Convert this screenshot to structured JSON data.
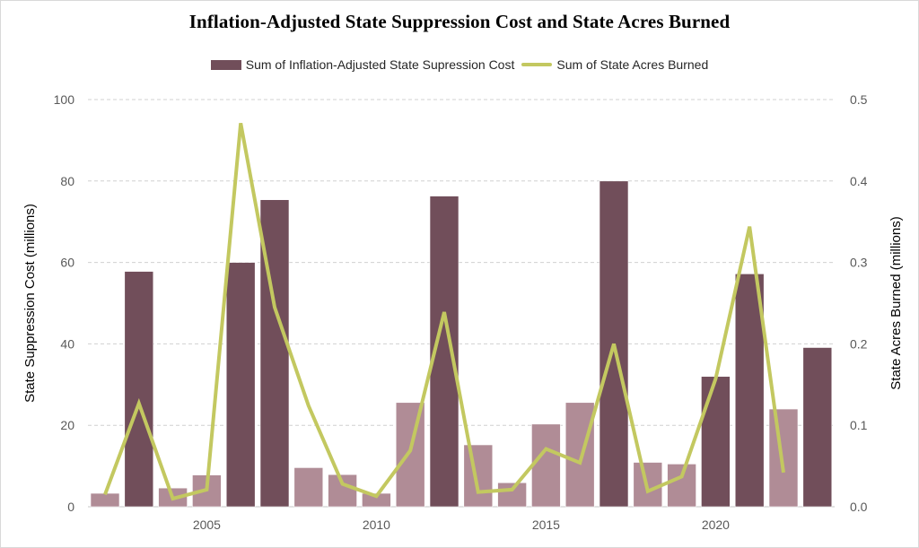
{
  "chart_data": {
    "type": "bar",
    "combo": "bar+line (secondary axis)",
    "title": "Inflation-Adjusted State Suppression Cost and State Acres Burned",
    "legend_position": "top",
    "grid": true,
    "xlabel": "",
    "ylabel": "State Suppression Cost (millions)",
    "y2label": "State Acres Burned (millions)",
    "ylim": [
      0,
      100
    ],
    "y2lim": [
      0,
      0.5
    ],
    "yticks": [
      "0",
      "20",
      "40",
      "60",
      "80",
      "100"
    ],
    "y2ticks": [
      "0.0",
      "0.1",
      "0.2",
      "0.3",
      "0.4",
      "0.5"
    ],
    "xtick_labels": [
      "2005",
      "2010",
      "2015",
      "2020"
    ],
    "categories": [
      2002,
      2003,
      2004,
      2005,
      2006,
      2007,
      2008,
      2009,
      2010,
      2011,
      2012,
      2013,
      2014,
      2015,
      2016,
      2017,
      2018,
      2019,
      2020,
      2021,
      2022,
      2023
    ],
    "series": [
      {
        "name": "Sum of Inflation-Adjusted State Supression Cost",
        "type": "bar",
        "axis": "left",
        "color": "#714E5A",
        "highlight_color": "#714E5A",
        "muted_color": "#B08C96",
        "values": [
          3.3,
          57.8,
          4.6,
          7.8,
          60.0,
          75.4,
          9.6,
          7.9,
          3.3,
          25.6,
          76.3,
          15.2,
          5.9,
          20.3,
          25.6,
          80.0,
          10.9,
          10.5,
          32.0,
          57.2,
          24.0,
          39.1
        ],
        "highlighted": [
          false,
          true,
          false,
          false,
          true,
          true,
          false,
          false,
          false,
          false,
          true,
          false,
          false,
          false,
          false,
          true,
          false,
          false,
          true,
          true,
          false,
          true
        ]
      },
      {
        "name": "Sum of State Acres Burned",
        "type": "line",
        "axis": "right",
        "color": "#C3C860",
        "values": [
          0.015,
          0.127,
          0.01,
          0.021,
          0.471,
          0.245,
          0.124,
          0.028,
          0.013,
          0.069,
          0.239,
          0.018,
          0.021,
          0.071,
          0.054,
          0.2,
          0.019,
          0.037,
          0.157,
          0.344,
          0.042,
          null
        ]
      }
    ]
  },
  "legend": {
    "bar_label": "Sum of Inflation-Adjusted State Supression Cost",
    "line_label": "Sum of State Acres Burned"
  }
}
